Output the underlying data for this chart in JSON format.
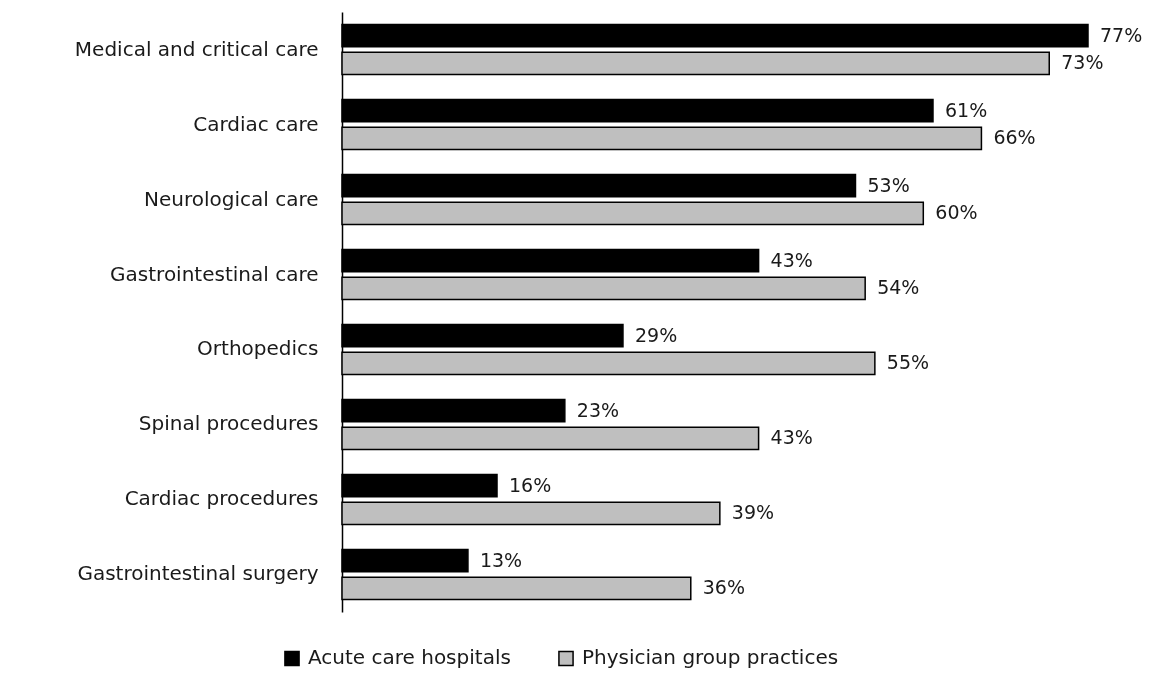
{
  "chart_data": {
    "type": "bar",
    "orientation": "horizontal",
    "categories": [
      "Medical and critical care",
      "Cardiac care",
      "Neurological care",
      "Gastrointestinal care",
      "Orthopedics",
      "Spinal procedures",
      "Cardiac procedures",
      "Gastrointestinal surgery"
    ],
    "series": [
      {
        "name": "Acute care hospitals",
        "color": "#000000",
        "values": [
          77,
          61,
          53,
          43,
          29,
          23,
          16,
          13
        ],
        "value_labels": [
          "77%",
          "61%",
          "53%",
          "43%",
          "29%",
          "23%",
          "16%",
          "13%"
        ]
      },
      {
        "name": "Physician group practices",
        "color": "#bfbfbf",
        "values": [
          73,
          66,
          60,
          54,
          55,
          43,
          39,
          36
        ],
        "value_labels": [
          "73%",
          "66%",
          "60%",
          "54%",
          "55%",
          "43%",
          "39%",
          "36%"
        ]
      }
    ],
    "legend": "bottom",
    "tick_labels": "y"
  }
}
